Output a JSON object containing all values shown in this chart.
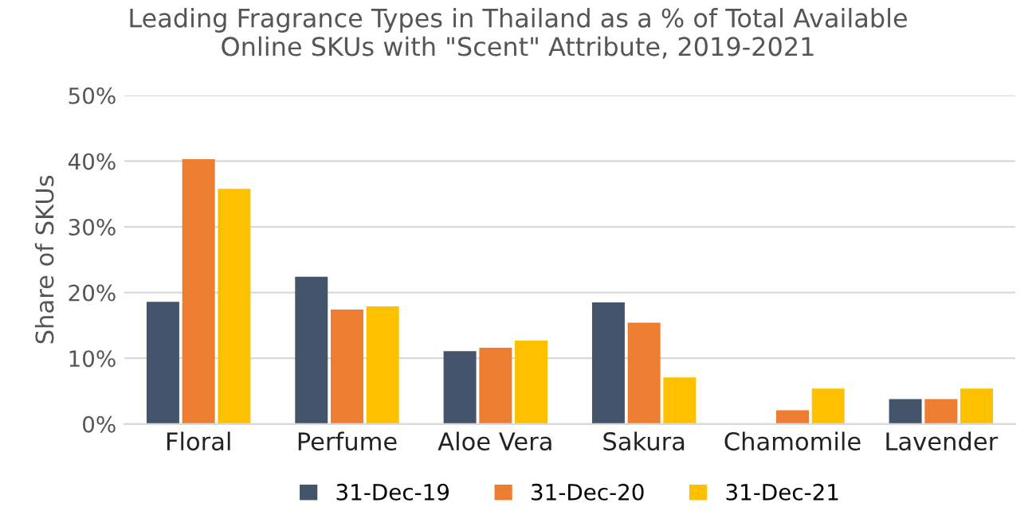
{
  "chart_data": {
    "type": "bar",
    "title": "Leading Fragrance Types in Thailand as a % of Total Available\nOnline SKUs with \"Scent\" Attribute, 2019-2021",
    "ylabel": "Share of SKUs",
    "categories": [
      "Floral",
      "Perfume",
      "Aloe Vera",
      "Sakura",
      "Chamomile",
      "Lavender"
    ],
    "series": [
      {
        "name": "31-Dec-19",
        "color": "#44546a",
        "values": [
          18.6,
          22.4,
          11.1,
          18.5,
          0,
          3.8
        ]
      },
      {
        "name": "31-Dec-20",
        "color": "#ed7d31",
        "values": [
          40.3,
          17.4,
          11.6,
          15.4,
          2.1,
          3.8
        ]
      },
      {
        "name": "31-Dec-21",
        "color": "#ffc000",
        "values": [
          35.8,
          17.9,
          12.7,
          7.1,
          5.4,
          5.4
        ]
      }
    ],
    "ylim": [
      0,
      50
    ],
    "yticks": [
      {
        "value": 0,
        "label": "0%"
      },
      {
        "value": 10,
        "label": "10%"
      },
      {
        "value": 20,
        "label": "20%"
      },
      {
        "value": 30,
        "label": "30%"
      },
      {
        "value": 40,
        "label": "40%"
      },
      {
        "value": 50,
        "label": "50%"
      }
    ],
    "grid": "y",
    "legend": "bottom"
  }
}
